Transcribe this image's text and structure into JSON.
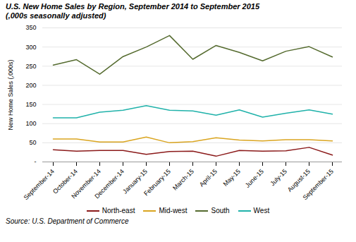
{
  "chart_data": {
    "type": "line",
    "title": "U.S. New Home Sales by Region, September 2014 to September 2015",
    "subtitle": "(,000s seasonally adjusted)",
    "ylabel": "New Home Sales (,000s)",
    "source": "Source: U.S. Department of Commerce",
    "categories": [
      "September-14",
      "October-14",
      "November-14",
      "December-14",
      "January-15",
      "February-15",
      "March-15",
      "April-15",
      "May-15",
      "June-15",
      "July-15",
      "August-15",
      "September-15"
    ],
    "series": [
      {
        "name": "North-east",
        "color": "#8B1A1A",
        "values": [
          32,
          28,
          30,
          30,
          20,
          27,
          28,
          15,
          30,
          28,
          29,
          38,
          18
        ]
      },
      {
        "name": "Mid-west",
        "color": "#DAA520",
        "values": [
          60,
          60,
          52,
          52,
          65,
          50,
          53,
          63,
          57,
          55,
          58,
          58,
          55
        ]
      },
      {
        "name": "South",
        "color": "#556B2F",
        "values": [
          253,
          267,
          229,
          275,
          300,
          330,
          268,
          304,
          286,
          264,
          289,
          301,
          274
        ]
      },
      {
        "name": "West",
        "color": "#20B2AA",
        "values": [
          115,
          115,
          130,
          135,
          147,
          135,
          133,
          122,
          136,
          117,
          127,
          136,
          125
        ]
      }
    ],
    "ylim": [
      0,
      350
    ],
    "yticks": [
      {
        "value": 0,
        "label": "-"
      },
      50,
      100,
      150,
      200,
      250,
      300,
      350
    ],
    "grid": true,
    "legend": "bottom"
  }
}
